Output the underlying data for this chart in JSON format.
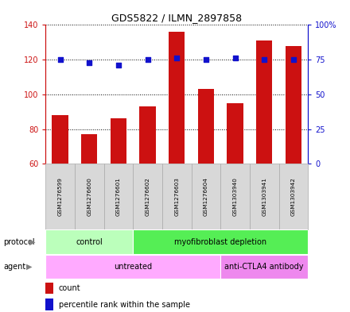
{
  "title": "GDS5822 / ILMN_2897858",
  "samples": [
    "GSM1276599",
    "GSM1276600",
    "GSM1276601",
    "GSM1276602",
    "GSM1276603",
    "GSM1276604",
    "GSM1303940",
    "GSM1303941",
    "GSM1303942"
  ],
  "counts": [
    88,
    77,
    86,
    93,
    136,
    103,
    95,
    131,
    128
  ],
  "percentiles": [
    75,
    73,
    71,
    75,
    76,
    75,
    76,
    75,
    75
  ],
  "ylim_left": [
    60,
    140
  ],
  "ylim_right": [
    0,
    100
  ],
  "yticks_left": [
    60,
    80,
    100,
    120,
    140
  ],
  "yticks_right": [
    0,
    25,
    50,
    75,
    100
  ],
  "ytick_labels_left": [
    "60",
    "80",
    "100",
    "120",
    "140"
  ],
  "ytick_labels_right": [
    "0",
    "25",
    "50",
    "75",
    "100%"
  ],
  "bar_color": "#cc1111",
  "dot_color": "#1111cc",
  "protocol_groups": [
    {
      "label": "control",
      "start": 0,
      "end": 3,
      "color": "#bbffbb"
    },
    {
      "label": "myofibroblast depletion",
      "start": 3,
      "end": 9,
      "color": "#55ee55"
    }
  ],
  "agent_groups": [
    {
      "label": "untreated",
      "start": 0,
      "end": 6,
      "color": "#ffaaff"
    },
    {
      "label": "anti-CTLA4 antibody",
      "start": 6,
      "end": 9,
      "color": "#ee88ee"
    }
  ],
  "sample_box_color": "#d8d8d8",
  "sample_box_edge": "#aaaaaa",
  "legend_count_color": "#cc1111",
  "legend_dot_color": "#1111cc"
}
